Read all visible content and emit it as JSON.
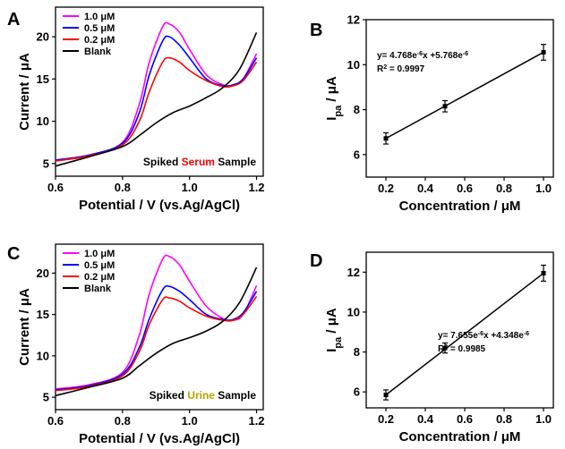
{
  "chart_data": [
    {
      "panel": "A",
      "type": "line",
      "xlabel": "Potential / V (vs.Ag/AgCl)",
      "ylabel": "Current / μA",
      "xlim": [
        0.6,
        1.22
      ],
      "ylim": [
        3.5,
        23.5
      ],
      "xticks": [
        "0.6",
        "0.8",
        "1.0",
        "1.2"
      ],
      "yticks": [
        "5",
        "10",
        "15",
        "20"
      ],
      "legend_position": "top-left",
      "annotation": {
        "prefix": "Spiked ",
        "highlight": "Serum",
        "suffix": " Sample",
        "highlight_color": "#ff0000"
      },
      "series": [
        {
          "name": "1.0 μM",
          "color": "#ff00ff",
          "x": [
            0.6,
            0.7,
            0.8,
            0.85,
            0.88,
            0.92,
            0.94,
            0.97,
            1.0,
            1.05,
            1.1,
            1.13,
            1.16,
            1.2
          ],
          "y": [
            5.4,
            6.0,
            7.5,
            12.0,
            17.0,
            21.2,
            21.5,
            20.5,
            18.5,
            15.5,
            14.3,
            14.3,
            15.0,
            18.0
          ]
        },
        {
          "name": "0.5 μM",
          "color": "#0000ff",
          "x": [
            0.6,
            0.7,
            0.8,
            0.85,
            0.88,
            0.92,
            0.94,
            0.97,
            1.0,
            1.05,
            1.1,
            1.13,
            1.16,
            1.2
          ],
          "y": [
            5.4,
            6.0,
            7.4,
            11.0,
            15.5,
            19.5,
            20.0,
            19.0,
            17.5,
            15.0,
            14.2,
            14.3,
            15.0,
            17.5
          ]
        },
        {
          "name": "0.2 μM",
          "color": "#ff0000",
          "x": [
            0.6,
            0.7,
            0.8,
            0.85,
            0.88,
            0.92,
            0.94,
            0.97,
            1.0,
            1.05,
            1.1,
            1.13,
            1.16,
            1.2
          ],
          "y": [
            5.3,
            5.9,
            7.2,
            10.0,
            13.5,
            17.0,
            17.5,
            17.0,
            16.0,
            14.8,
            14.1,
            14.2,
            14.8,
            17.0
          ]
        },
        {
          "name": "Blank",
          "color": "#000000",
          "x": [
            0.6,
            0.7,
            0.8,
            0.85,
            0.9,
            0.95,
            1.0,
            1.05,
            1.1,
            1.15,
            1.2
          ],
          "y": [
            4.7,
            5.8,
            7.0,
            8.3,
            9.8,
            11.0,
            11.8,
            12.8,
            14.0,
            16.2,
            20.5
          ]
        }
      ]
    },
    {
      "panel": "B",
      "type": "scatter",
      "xlabel": "Concentration / μM",
      "ylabel": "I",
      "ylabel_sub": "pa",
      "ylabel_unit": " / μA",
      "xlim": [
        0.1,
        1.05
      ],
      "ylim": [
        5.0,
        12.0
      ],
      "xticks": [
        "0.2",
        "0.4",
        "0.6",
        "0.8",
        "1.0"
      ],
      "yticks": [
        "6",
        "8",
        "10",
        "12"
      ],
      "points": [
        {
          "x": 0.2,
          "y": 6.72,
          "err": 0.25
        },
        {
          "x": 0.5,
          "y": 8.15,
          "err": 0.25
        },
        {
          "x": 1.0,
          "y": 10.55,
          "err": 0.35
        }
      ],
      "fit": {
        "x": [
          0.2,
          1.0
        ],
        "y": [
          6.72,
          10.55
        ]
      },
      "equation": {
        "line1": "y= 4.768e",
        "line1_sup": "-6",
        "line1_mid": "x +5.768e",
        "line1_sup2": "-6",
        "line2": "R",
        "line2_sup": "2",
        "line2_rest": " = 0.9997"
      }
    },
    {
      "panel": "C",
      "type": "line",
      "xlabel": "Potential / V (vs.Ag/AgCl)",
      "ylabel": "Current / μA",
      "xlim": [
        0.6,
        1.22
      ],
      "ylim": [
        3.5,
        23.5
      ],
      "xticks": [
        "0.6",
        "0.8",
        "1.0",
        "1.2"
      ],
      "yticks": [
        "5",
        "10",
        "15",
        "20"
      ],
      "legend_position": "top-left",
      "annotation": {
        "prefix": "Spiked ",
        "highlight": "Urine",
        "suffix": " Sample",
        "highlight_color": "#b8a000"
      },
      "series": [
        {
          "name": "1.0 μM",
          "color": "#ff00ff",
          "x": [
            0.6,
            0.7,
            0.8,
            0.85,
            0.88,
            0.92,
            0.94,
            0.97,
            1.0,
            1.05,
            1.1,
            1.13,
            1.16,
            1.2
          ],
          "y": [
            6.0,
            6.5,
            8.0,
            12.5,
            17.5,
            21.7,
            22.0,
            21.0,
            19.0,
            16.0,
            14.5,
            14.3,
            15.0,
            18.5
          ]
        },
        {
          "name": "0.5 μM",
          "color": "#0000ff",
          "x": [
            0.6,
            0.7,
            0.8,
            0.85,
            0.88,
            0.92,
            0.94,
            0.97,
            1.0,
            1.05,
            1.1,
            1.13,
            1.16,
            1.2
          ],
          "y": [
            5.9,
            6.4,
            7.8,
            11.0,
            14.5,
            18.0,
            18.4,
            17.8,
            16.8,
            15.0,
            14.4,
            14.4,
            15.2,
            17.8
          ]
        },
        {
          "name": "0.2 μM",
          "color": "#ff0000",
          "x": [
            0.6,
            0.7,
            0.8,
            0.85,
            0.88,
            0.92,
            0.94,
            0.97,
            1.0,
            1.05,
            1.1,
            1.13,
            1.16,
            1.2
          ],
          "y": [
            5.8,
            6.3,
            7.6,
            10.5,
            13.8,
            16.8,
            17.0,
            16.6,
            15.8,
            14.8,
            14.3,
            14.3,
            15.0,
            17.2
          ]
        },
        {
          "name": "Blank",
          "color": "#000000",
          "x": [
            0.6,
            0.7,
            0.8,
            0.85,
            0.9,
            0.95,
            1.0,
            1.05,
            1.1,
            1.15,
            1.2
          ],
          "y": [
            5.2,
            6.2,
            7.3,
            8.8,
            10.3,
            11.5,
            12.2,
            13.0,
            14.2,
            16.5,
            20.7
          ]
        }
      ]
    },
    {
      "panel": "D",
      "type": "scatter",
      "xlabel": "Concentration / μM",
      "ylabel": "I",
      "ylabel_sub": "pa",
      "ylabel_unit": " / μA",
      "xlim": [
        0.1,
        1.05
      ],
      "ylim": [
        5.2,
        13.0
      ],
      "xticks": [
        "0.2",
        "0.4",
        "0.6",
        "0.8",
        "1.0"
      ],
      "yticks": [
        "6",
        "8",
        "10",
        "12"
      ],
      "points": [
        {
          "x": 0.2,
          "y": 5.85,
          "err": 0.25
        },
        {
          "x": 0.5,
          "y": 8.2,
          "err": 0.25
        },
        {
          "x": 1.0,
          "y": 11.95,
          "err": 0.4
        }
      ],
      "fit": {
        "x": [
          0.2,
          1.0
        ],
        "y": [
          5.85,
          11.95
        ]
      },
      "equation": {
        "line1": "y= 7.655e",
        "line1_sup": "-6",
        "line1_mid": "x +4.348e",
        "line1_sup2": "-6",
        "line2": "R",
        "line2_sup": "2",
        "line2_rest": " = 0.9985"
      }
    }
  ]
}
